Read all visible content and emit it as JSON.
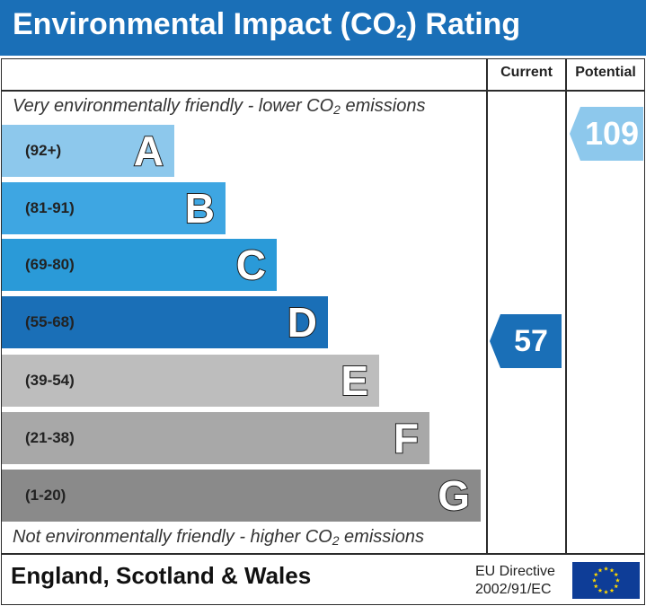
{
  "header": {
    "title_pre": "Environmental Impact (CO",
    "title_sub": "2",
    "title_post": ") Rating"
  },
  "columns": {
    "current": "Current",
    "potential": "Potential"
  },
  "notes": {
    "top_pre": "Very environmentally friendly - lower CO",
    "top_sub": "2",
    "top_post": " emissions",
    "bottom_pre": "Not environmentally friendly - higher CO",
    "bottom_sub": "2",
    "bottom_post": " emissions"
  },
  "chart_data": {
    "type": "bar",
    "categories": [
      "A",
      "B",
      "C",
      "D",
      "E",
      "F",
      "G"
    ],
    "ranges": [
      "(92+)",
      "(81-91)",
      "(69-80)",
      "(55-68)",
      "(39-54)",
      "(21-38)",
      "(1-20)"
    ],
    "band_colors": [
      "#8dc8ec",
      "#3ea6e2",
      "#2a9ad8",
      "#1a6fb7",
      "#bdbdbd",
      "#a8a8a8",
      "#8a8a8a"
    ],
    "current": {
      "value": 57,
      "band": "D",
      "color": "#1a6fb7"
    },
    "potential": {
      "value": 109,
      "band": "A",
      "color": "#8dc8ec"
    }
  },
  "footer": {
    "country": "England, Scotland & Wales",
    "directive_line1": "EU Directive",
    "directive_line2": "2002/91/EC",
    "flag_color": "#0e3d97",
    "star_color": "#ffd700"
  }
}
